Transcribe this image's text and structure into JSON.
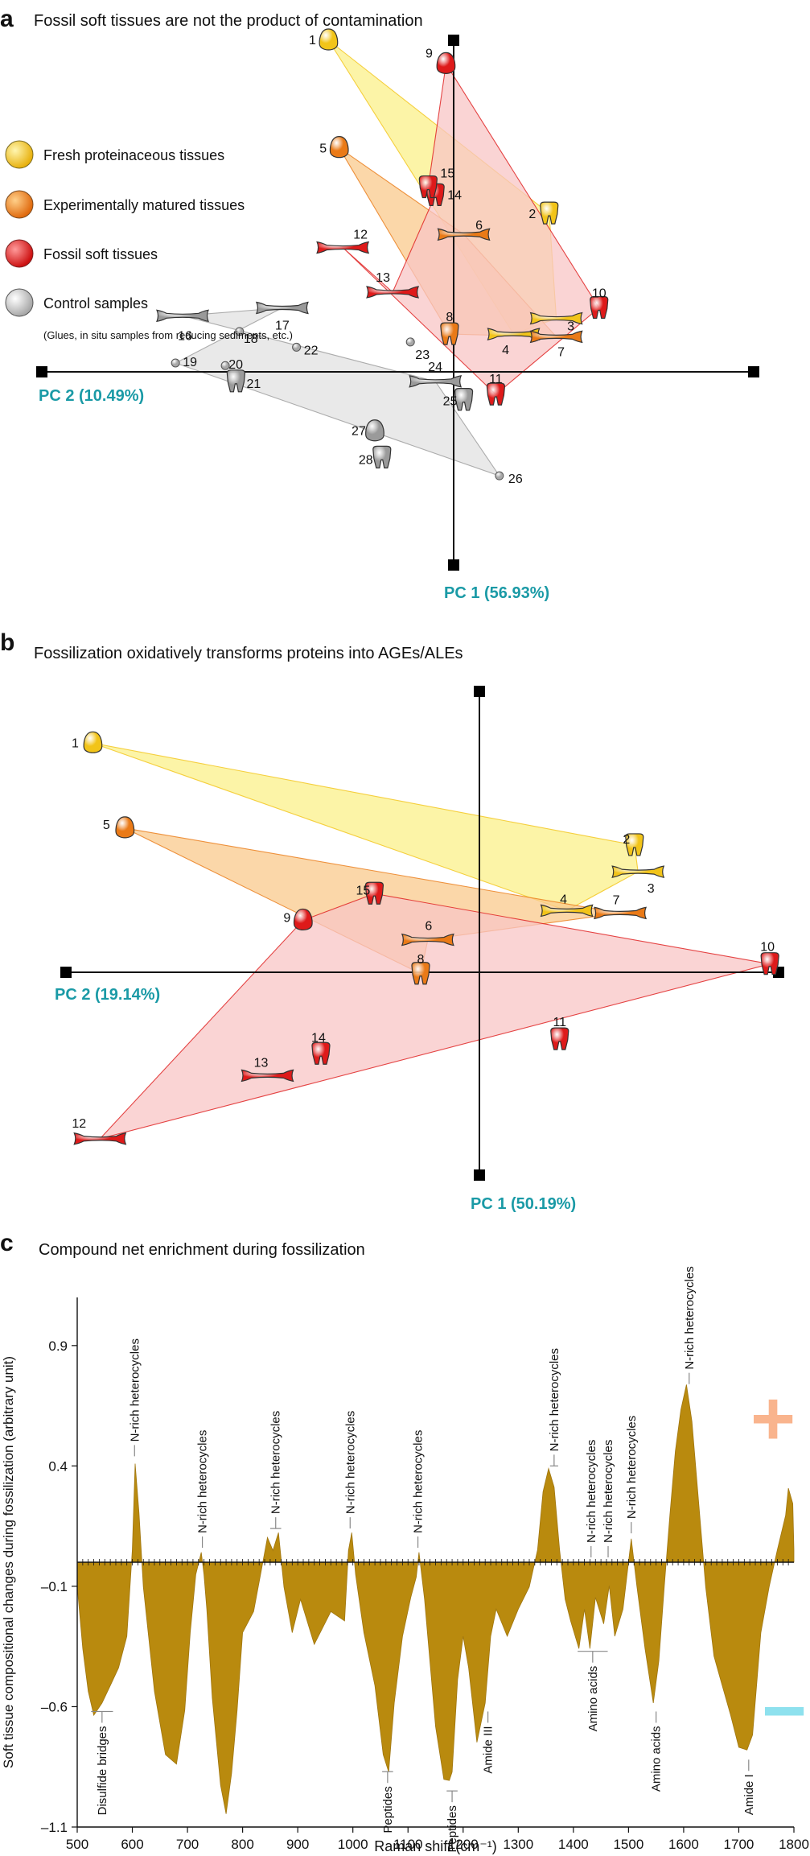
{
  "panels": {
    "a": {
      "label": "a",
      "title": "Fossil soft tissues are not the product of contamination",
      "pc_x_label": "PC 2 (10.49%)",
      "pc_y_label": "PC 1 (56.93%)",
      "legend": [
        {
          "label": "Fresh proteinaceous tissues",
          "color": "#f2c419"
        },
        {
          "label": "Experimentally matured tissues",
          "color": "#ea7a17"
        },
        {
          "label": "Fossil soft tissues",
          "color": "#de1a1a"
        },
        {
          "label": "Control samples",
          "color": "#c4c4c4"
        }
      ],
      "legend_note": "(Glues, in situ samples from reducing sediments, etc.)"
    },
    "b": {
      "label": "b",
      "title": "Fossilization oxidatively transforms proteins into AGEs/ALEs",
      "pc_x_label": "PC 2 (19.14%)",
      "pc_y_label": "PC 1 (50.19%)"
    },
    "c": {
      "label": "c",
      "title": "Compound net enrichment during fossilization",
      "plus_sign": "+",
      "minus_sign": "−"
    }
  },
  "chart_data": [
    {
      "type": "scatter",
      "title": "Fossil soft tissues are not the product of contamination",
      "xlabel": "PC 2 (10.49%)",
      "ylabel": "PC 1 (56.93%)",
      "xlim": [
        -1,
        1
      ],
      "ylim": [
        -1,
        1
      ],
      "series": [
        {
          "name": "Fresh proteinaceous tissues",
          "color": "#f2c419",
          "fill": "#fbf08a",
          "hull": [
            1,
            2,
            3,
            4
          ],
          "points": [
            {
              "id": "1",
              "shape": "egg",
              "x": -0.19,
              "y": 1.0
            },
            {
              "id": "2",
              "shape": "tooth",
              "x": 0.43,
              "y": 0.34
            },
            {
              "id": "3",
              "shape": "bone",
              "x": 0.45,
              "y": -0.06
            },
            {
              "id": "4",
              "shape": "bone",
              "x": 0.33,
              "y": -0.12
            }
          ]
        },
        {
          "name": "Experimentally matured tissues",
          "color": "#ea7a17",
          "fill": "#f9c98c",
          "hull": [
            5,
            6,
            7,
            8
          ],
          "points": [
            {
              "id": "5",
              "shape": "egg",
              "x": -0.16,
              "y": 0.59
            },
            {
              "id": "6",
              "shape": "bone",
              "x": 0.19,
              "y": 0.26
            },
            {
              "id": "7",
              "shape": "bone",
              "x": 0.45,
              "y": -0.13
            },
            {
              "id": "8",
              "shape": "tooth",
              "x": 0.15,
              "y": -0.12
            }
          ]
        },
        {
          "name": "Fossil soft tissues",
          "color": "#de1a1a",
          "fill": "#f8c6c6",
          "hull": [
            9,
            10,
            11,
            12,
            13,
            14,
            15
          ],
          "points": [
            {
              "id": "9",
              "shape": "egg",
              "x": 0.14,
              "y": 0.91
            },
            {
              "id": "10",
              "shape": "tooth",
              "x": 0.57,
              "y": -0.02
            },
            {
              "id": "11",
              "shape": "tooth",
              "x": 0.28,
              "y": -0.35
            },
            {
              "id": "12",
              "shape": "bone",
              "x": -0.15,
              "y": 0.21
            },
            {
              "id": "13",
              "shape": "bone",
              "x": -0.01,
              "y": 0.04
            },
            {
              "id": "14",
              "shape": "tooth",
              "x": 0.11,
              "y": 0.41
            },
            {
              "id": "15",
              "shape": "tooth",
              "x": 0.09,
              "y": 0.44
            }
          ]
        },
        {
          "name": "Control samples",
          "color": "#9a9a9a",
          "fill": "#e2e2e2",
          "hull": [
            16,
            17,
            19,
            26,
            24
          ],
          "points": [
            {
              "id": "16",
              "shape": "bone",
              "x": -0.6,
              "y": -0.05
            },
            {
              "id": "17",
              "shape": "bone",
              "x": -0.32,
              "y": -0.02
            },
            {
              "id": "18",
              "shape": "dot",
              "x": -0.44,
              "y": -0.11
            },
            {
              "id": "19",
              "shape": "dot",
              "x": -0.62,
              "y": -0.23
            },
            {
              "id": "20",
              "shape": "dot",
              "x": -0.48,
              "y": -0.24
            },
            {
              "id": "21",
              "shape": "tooth",
              "x": -0.45,
              "y": -0.3
            },
            {
              "id": "22",
              "shape": "dot",
              "x": -0.28,
              "y": -0.17
            },
            {
              "id": "23",
              "shape": "dot",
              "x": 0.04,
              "y": -0.15
            },
            {
              "id": "24",
              "shape": "bone",
              "x": 0.11,
              "y": -0.3
            },
            {
              "id": "25",
              "shape": "tooth",
              "x": 0.19,
              "y": -0.37
            },
            {
              "id": "26",
              "shape": "dot",
              "x": 0.29,
              "y": -0.66
            },
            {
              "id": "27",
              "shape": "egg",
              "x": -0.06,
              "y": -0.49
            },
            {
              "id": "28",
              "shape": "tooth",
              "x": -0.04,
              "y": -0.59
            }
          ]
        }
      ]
    },
    {
      "type": "scatter",
      "title": "Fossilization oxidatively transforms proteins into AGEs/ALEs",
      "xlabel": "PC 2 (19.14%)",
      "ylabel": "PC 1 (50.19%)",
      "xlim": [
        -1,
        1
      ],
      "ylim": [
        -1,
        1
      ],
      "series": [
        {
          "name": "Fresh proteinaceous tissues",
          "color": "#f2c419",
          "fill": "#fbf08a",
          "hull": [
            1,
            2,
            3,
            4
          ],
          "points": [
            {
              "id": "1",
              "shape": "egg",
              "x": -0.92,
              "y": 0.78
            },
            {
              "id": "2",
              "shape": "tooth",
              "x": 0.6,
              "y": 0.36
            },
            {
              "id": "3",
              "shape": "bone",
              "x": 0.61,
              "y": 0.25
            },
            {
              "id": "4",
              "shape": "bone",
              "x": 0.41,
              "y": 0.09
            }
          ]
        },
        {
          "name": "Experimentally matured tissues",
          "color": "#ea7a17",
          "fill": "#f9c98c",
          "hull": [
            5,
            7,
            6,
            8
          ],
          "points": [
            {
              "id": "5",
              "shape": "egg",
              "x": -0.83,
              "y": 0.43
            },
            {
              "id": "6",
              "shape": "bone",
              "x": 0.02,
              "y": -0.03
            },
            {
              "id": "7",
              "shape": "bone",
              "x": 0.56,
              "y": 0.08
            },
            {
              "id": "8",
              "shape": "tooth",
              "x": 0.0,
              "y": -0.17
            }
          ]
        },
        {
          "name": "Fossil soft tissues",
          "color": "#de1a1a",
          "fill": "#f8c6c6",
          "hull": [
            9,
            15,
            10,
            12
          ],
          "points": [
            {
              "id": "9",
              "shape": "egg",
              "x": -0.33,
              "y": 0.05
            },
            {
              "id": "10",
              "shape": "tooth",
              "x": 0.98,
              "y": -0.13
            },
            {
              "id": "11",
              "shape": "tooth",
              "x": 0.39,
              "y": -0.44
            },
            {
              "id": "12",
              "shape": "bone",
              "x": -0.9,
              "y": -0.85
            },
            {
              "id": "13",
              "shape": "bone",
              "x": -0.43,
              "y": -0.59
            },
            {
              "id": "14",
              "shape": "tooth",
              "x": -0.28,
              "y": -0.5
            },
            {
              "id": "15",
              "shape": "tooth",
              "x": -0.13,
              "y": 0.16
            }
          ]
        }
      ]
    },
    {
      "type": "area",
      "title": "Compound net enrichment during fossilization",
      "xlabel": "Raman shift (cm⁻¹)",
      "ylabel": "Soft tissue compositional changes during fossilization (arbitrary unit)",
      "xlim": [
        500,
        1800
      ],
      "ylim": [
        -1.1,
        1.1
      ],
      "xticks": [
        500,
        600,
        700,
        800,
        900,
        1000,
        1100,
        1200,
        1300,
        1400,
        1500,
        1600,
        1700,
        1800
      ],
      "yticks": [
        0.9,
        0.4,
        -0.1,
        -0.6,
        -1.1
      ],
      "ytick_labels": [
        "0.9",
        "0.4",
        "–0.1",
        "–0.6",
        "–1.1"
      ],
      "baseline": 0,
      "fill_color": "#b98a0e",
      "x": [
        500,
        510,
        520,
        530,
        545,
        560,
        575,
        590,
        600,
        605,
        612,
        620,
        640,
        660,
        680,
        695,
        705,
        715,
        725,
        730,
        735,
        745,
        760,
        770,
        780,
        790,
        800,
        820,
        845,
        855,
        865,
        875,
        890,
        905,
        930,
        960,
        985,
        992,
        998,
        1005,
        1020,
        1040,
        1055,
        1065,
        1075,
        1090,
        1105,
        1115,
        1120,
        1130,
        1150,
        1165,
        1175,
        1180,
        1190,
        1200,
        1210,
        1225,
        1240,
        1250,
        1260,
        1280,
        1300,
        1320,
        1335,
        1345,
        1355,
        1365,
        1375,
        1385,
        1395,
        1410,
        1420,
        1430,
        1440,
        1455,
        1465,
        1475,
        1490,
        1505,
        1515,
        1530,
        1545,
        1555,
        1565,
        1575,
        1585,
        1595,
        1605,
        1615,
        1625,
        1640,
        1655,
        1670,
        1685,
        1700,
        1715,
        1725,
        1740,
        1755,
        1770,
        1785,
        1790,
        1798,
        1800
      ],
      "values": [
        -0.1,
        -0.35,
        -0.55,
        -0.62,
        -0.6,
        -0.5,
        -0.45,
        -0.3,
        0.05,
        0.42,
        0.2,
        -0.1,
        -0.55,
        -0.78,
        -0.86,
        -0.6,
        -0.3,
        -0.05,
        0.04,
        -0.05,
        -0.2,
        -0.55,
        -0.95,
        -1.02,
        -0.9,
        -0.6,
        -0.3,
        -0.2,
        0.1,
        0.05,
        0.12,
        -0.1,
        -0.3,
        -0.15,
        -0.35,
        -0.2,
        -0.25,
        0.05,
        0.12,
        -0.05,
        -0.3,
        -0.5,
        -0.82,
        -0.85,
        -0.6,
        -0.3,
        -0.15,
        -0.06,
        0.04,
        -0.15,
        -0.7,
        -0.88,
        -0.93,
        -0.85,
        -0.5,
        -0.3,
        -0.45,
        -0.73,
        -0.6,
        -0.3,
        -0.2,
        -0.3,
        -0.2,
        -0.1,
        0.05,
        0.3,
        0.38,
        0.32,
        0.05,
        -0.15,
        -0.25,
        -0.35,
        -0.2,
        -0.35,
        -0.15,
        -0.25,
        -0.1,
        -0.3,
        -0.2,
        0.1,
        -0.1,
        -0.35,
        -0.6,
        -0.4,
        -0.1,
        0.2,
        0.45,
        0.65,
        0.72,
        0.6,
        0.3,
        -0.1,
        -0.4,
        -0.5,
        -0.65,
        -0.75,
        -0.8,
        -0.7,
        -0.3,
        -0.1,
        0.05,
        0.2,
        0.3,
        0.25,
        0.05
      ],
      "annotations": [
        {
          "text": "Disulfide bridges",
          "x": 545,
          "side": "bottom",
          "span": 40
        },
        {
          "text": "N-rich heterocycles",
          "x": 604,
          "side": "top"
        },
        {
          "text": "N-rich heterocycles",
          "x": 727,
          "side": "top"
        },
        {
          "text": "N-rich heterocycles",
          "x": 860,
          "side": "top",
          "span": 20
        },
        {
          "text": "N-rich heterocycles",
          "x": 995,
          "side": "top"
        },
        {
          "text": "Peptides",
          "x": 1063,
          "side": "bottom",
          "span": 20
        },
        {
          "text": "N-rich heterocycles",
          "x": 1118,
          "side": "top"
        },
        {
          "text": "Peptides",
          "x": 1180,
          "side": "bottom",
          "span": 20
        },
        {
          "text": "Amide III",
          "x": 1245,
          "side": "bottom"
        },
        {
          "text": "N-rich heterocycles",
          "x": 1365,
          "side": "top",
          "span": 15
        },
        {
          "text": "Amino acids",
          "x": 1435,
          "side": "bottom",
          "span": 55
        },
        {
          "text": "N-rich heterocycles",
          "x": 1432,
          "side": "top"
        },
        {
          "text": "N-rich heterocycles",
          "x": 1463,
          "side": "top"
        },
        {
          "text": "N-rich heterocycles",
          "x": 1505,
          "side": "top"
        },
        {
          "text": "Amino acids",
          "x": 1550,
          "side": "bottom"
        },
        {
          "text": "N-rich heterocycles",
          "x": 1610,
          "side": "top"
        },
        {
          "text": "Amide I",
          "x": 1718,
          "side": "bottom"
        }
      ]
    }
  ]
}
